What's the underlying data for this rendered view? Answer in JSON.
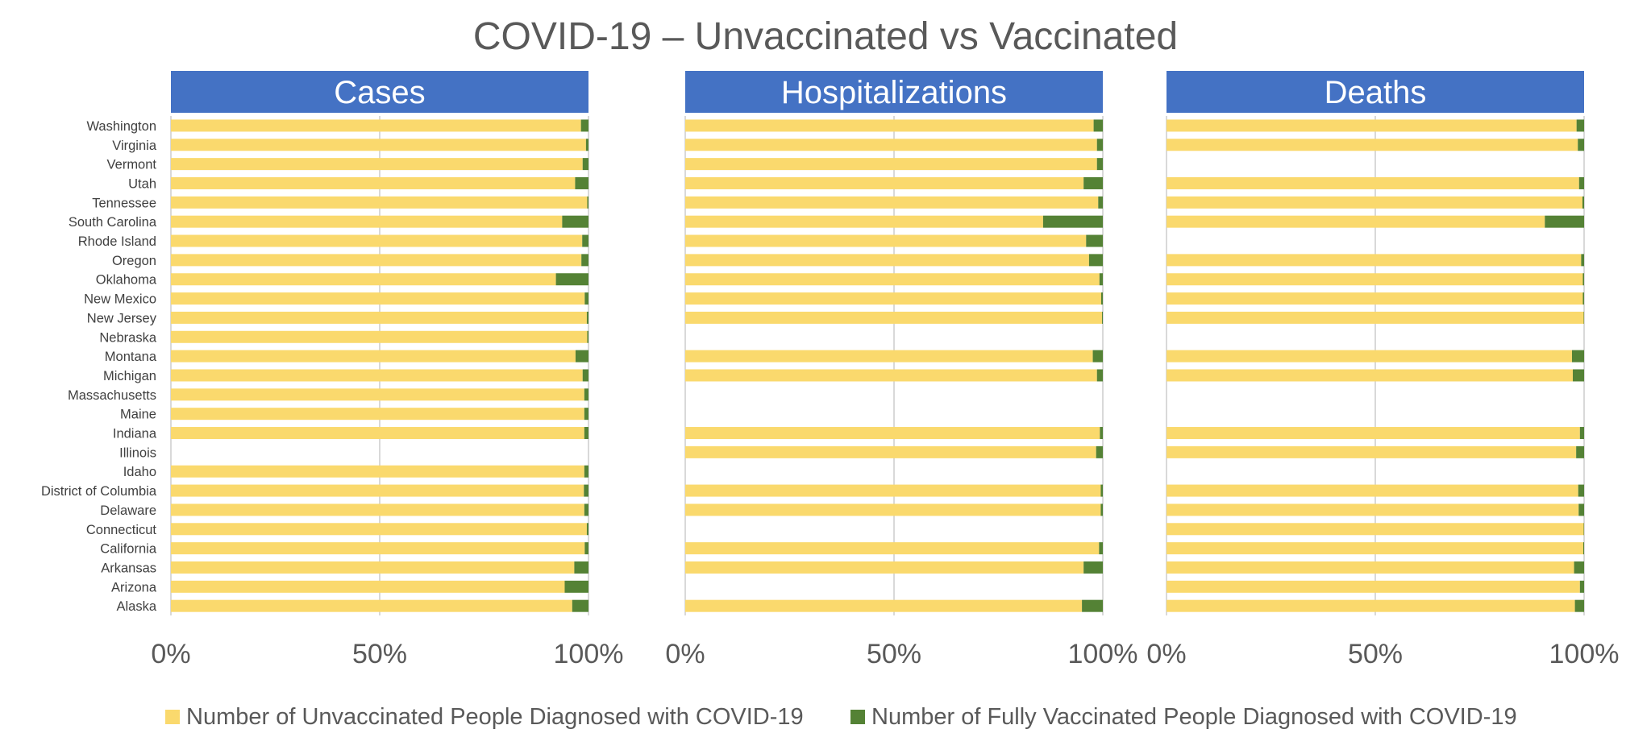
{
  "title": "COVID-19 – Unvaccinated vs Vaccinated",
  "colors": {
    "unvaccinated": "#FAD96D",
    "vaccinated": "#548235",
    "panel_header": "#4472C4",
    "grid": "#D9D9D9",
    "text": "#595959"
  },
  "legend": {
    "unvaccinated_label": "Number of Unvaccinated People Diagnosed with COVID-19",
    "vaccinated_label": "Number of Fully Vaccinated People Diagnosed with COVID-19"
  },
  "chart_data": {
    "type": "bar",
    "orientation": "horizontal",
    "stacked": "100%",
    "categories": [
      "Washington",
      "Virginia",
      "Vermont",
      "Utah",
      "Tennessee",
      "South Carolina",
      "Rhode Island",
      "Oregon",
      "Oklahoma",
      "New Mexico",
      "New Jersey",
      "Nebraska",
      "Montana",
      "Michigan",
      "Massachusetts",
      "Maine",
      "Indiana",
      "Illinois",
      "Idaho",
      "District of Columbia",
      "Delaware",
      "Connecticut",
      "California",
      "Arkansas",
      "Arizona",
      "Alaska"
    ],
    "x_ticks": [
      "0%",
      "50%",
      "100%"
    ],
    "xlim": [
      0,
      100
    ],
    "panels": [
      {
        "name": "Cases",
        "series": [
          {
            "name": "Number of Unvaccinated People Diagnosed with COVID-19",
            "values": [
              98.2,
              99.4,
              98.6,
              96.8,
              99.7,
              93.7,
              98.5,
              98.3,
              92.2,
              99.1,
              99.6,
              99.7,
              96.9,
              98.6,
              99.0,
              99.0,
              99.0,
              null,
              99.0,
              98.9,
              99.0,
              99.6,
              99.1,
              96.6,
              94.3,
              96.1
            ]
          },
          {
            "name": "Number of Fully Vaccinated People Diagnosed with COVID-19",
            "values": [
              1.8,
              0.6,
              1.4,
              3.2,
              0.3,
              6.3,
              1.5,
              1.7,
              7.8,
              0.9,
              0.4,
              0.3,
              3.1,
              1.4,
              1.0,
              1.0,
              1.0,
              null,
              1.0,
              1.1,
              1.0,
              0.4,
              0.9,
              3.4,
              5.7,
              3.9
            ]
          }
        ]
      },
      {
        "name": "Hospitalizations",
        "series": [
          {
            "name": "Number of Unvaccinated People Diagnosed with COVID-19",
            "values": [
              97.8,
              98.6,
              98.6,
              95.4,
              98.9,
              85.7,
              96.0,
              96.7,
              99.2,
              99.6,
              99.8,
              null,
              97.6,
              98.6,
              null,
              null,
              99.3,
              98.4,
              null,
              99.5,
              99.5,
              null,
              99.1,
              95.4,
              null,
              95.0
            ]
          },
          {
            "name": "Number of Fully Vaccinated People Diagnosed with COVID-19",
            "values": [
              2.2,
              1.4,
              1.4,
              4.6,
              1.1,
              14.3,
              4.0,
              3.3,
              0.8,
              0.4,
              0.2,
              null,
              2.4,
              1.4,
              null,
              null,
              0.7,
              1.6,
              null,
              0.5,
              0.5,
              null,
              0.9,
              4.6,
              null,
              5.0
            ]
          }
        ]
      },
      {
        "name": "Deaths",
        "series": [
          {
            "name": "Number of Unvaccinated People Diagnosed with COVID-19",
            "values": [
              98.2,
              98.5,
              null,
              98.8,
              99.6,
              90.6,
              null,
              99.3,
              99.7,
              99.7,
              99.9,
              null,
              97.1,
              97.3,
              null,
              null,
              99.0,
              98.1,
              null,
              98.6,
              98.7,
              99.9,
              99.8,
              97.6,
              99.0,
              97.8
            ]
          },
          {
            "name": "Number of Fully Vaccinated People Diagnosed with COVID-19",
            "values": [
              1.8,
              1.5,
              null,
              1.2,
              0.4,
              9.4,
              null,
              0.7,
              0.3,
              0.3,
              0.1,
              null,
              2.9,
              2.7,
              null,
              null,
              1.0,
              1.9,
              null,
              1.4,
              1.3,
              0.1,
              0.2,
              2.4,
              1.0,
              2.2
            ]
          }
        ]
      }
    ]
  }
}
